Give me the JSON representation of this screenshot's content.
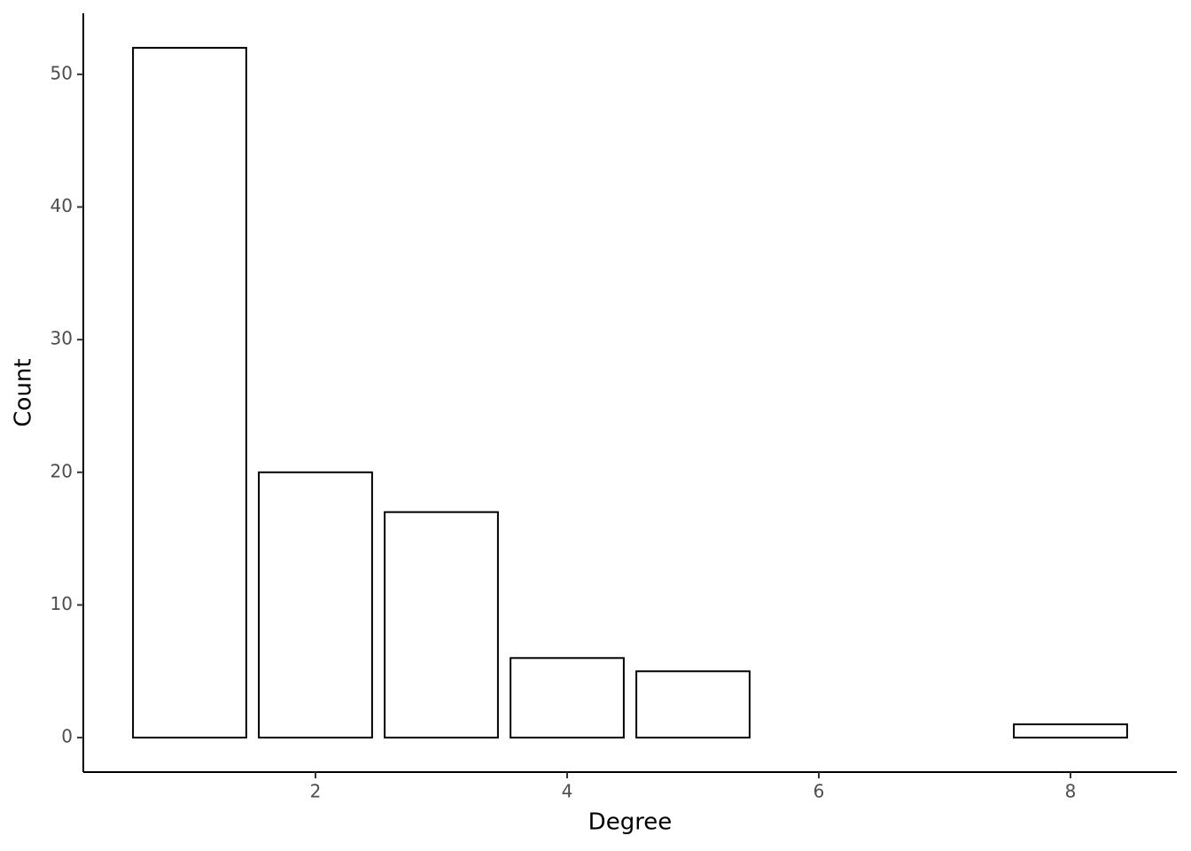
{
  "chart_data": {
    "type": "bar",
    "x": [
      1,
      2,
      3,
      4,
      5,
      8
    ],
    "values": [
      52,
      20,
      17,
      6,
      5,
      1
    ],
    "color": "#ffffff",
    "edgecolor": "#000000",
    "xlabel": "Degree",
    "ylabel": "Count",
    "xlim": [
      0.155,
      8.845
    ],
    "ylim": [
      -2.6,
      54.6
    ],
    "xticks": [
      2,
      4,
      6,
      8
    ],
    "yticks": [
      0,
      10,
      20,
      30,
      40,
      50
    ],
    "grid": false
  }
}
